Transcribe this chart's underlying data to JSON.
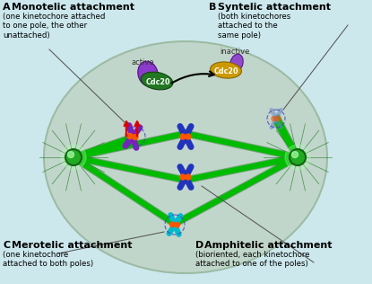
{
  "bg_color": "#cce8ed",
  "cell_color": "#c0d4c8",
  "cell_edge_color": "#98b89e",
  "title_A": "A  Monotelic attachment",
  "sub_A": "(one kinetochore attached\nto one pole, the other\nunattached)",
  "title_B": "B  Syntelic attachment",
  "sub_B": "(both kinetochores\nattached to the\nsame pole)",
  "title_C": "C  Merotelic attachment",
  "sub_C": "(one kinetochore\nattached to both poles)",
  "title_D": "D  Amphitelic attachment",
  "sub_D": "(bioriented, each kinetochore\nattached to one of the poles)",
  "pole_color": "#22aa22",
  "pole_edge": "#116611",
  "mt_color": "#00bb00",
  "mt_edge": "#007700",
  "chrom_blue": "#2233bb",
  "chrom_purple": "#7722bb",
  "chrom_cyan": "#00bbcc",
  "chrom_blue_fade": "#6688cc",
  "kinet_orange": "#ff5500",
  "active_cdc_green": "#227722",
  "inactive_cdc_yellow": "#cc9900",
  "cdc_purple": "#8833cc",
  "label_bold_size": 8.0,
  "label_sub_size": 6.2
}
